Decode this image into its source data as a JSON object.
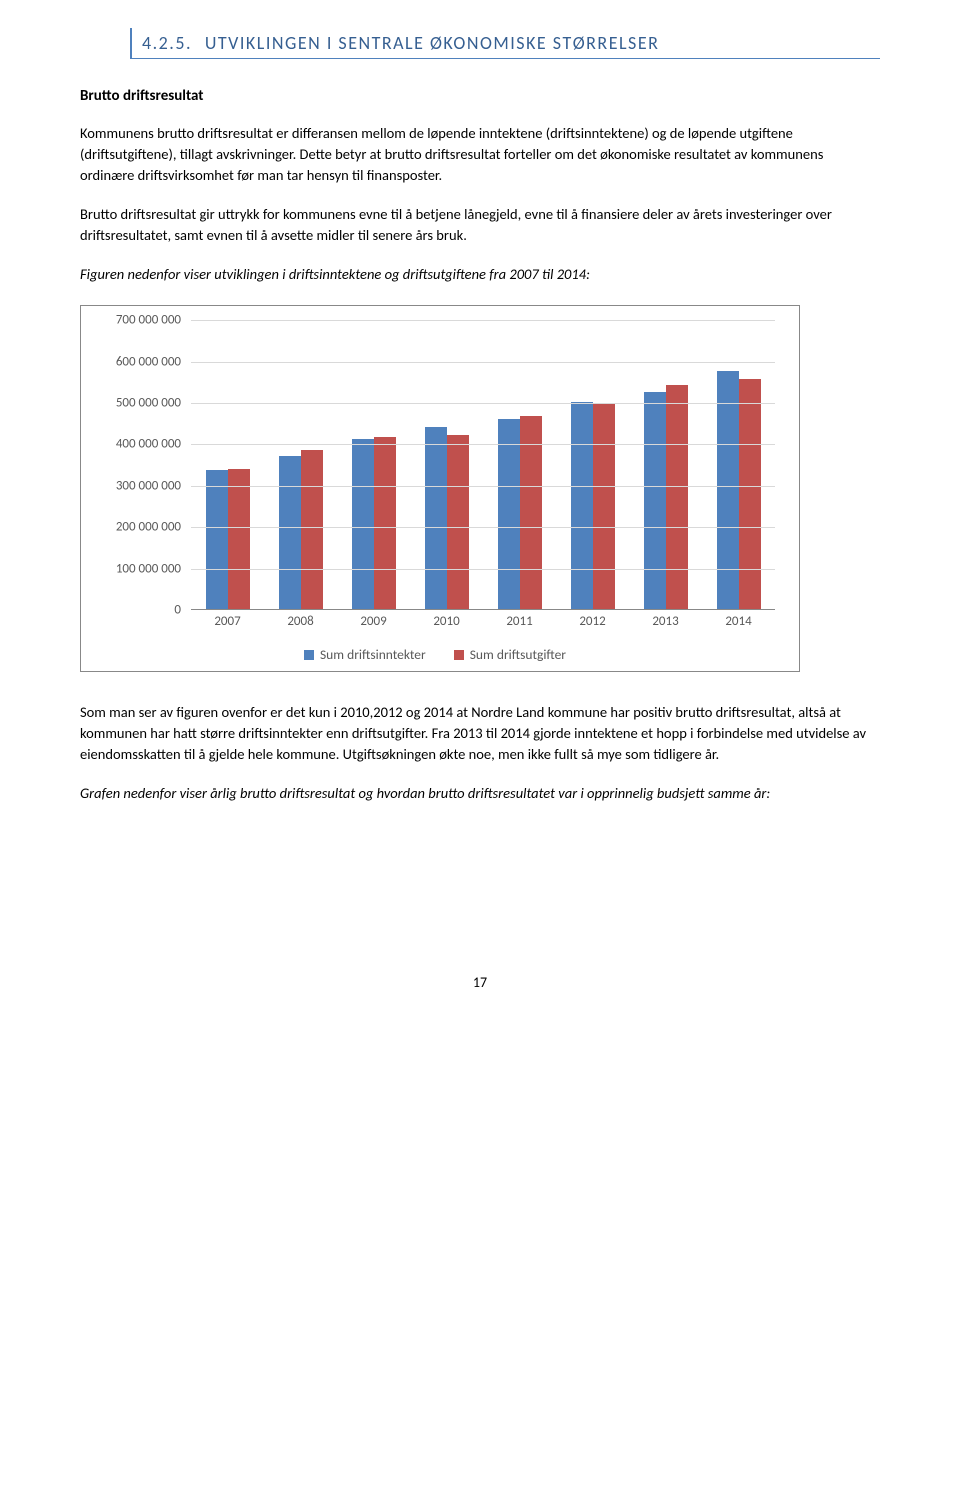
{
  "section": {
    "number": "4.2.5.",
    "title": "UTVIKLINGEN I SENTRALE ØKONOMISKE STØRRELSER"
  },
  "subheading": "Brutto driftsresultat",
  "para1": "Kommunens brutto driftsresultat er differansen mellom de løpende inntektene (driftsinntektene) og de løpende utgiftene (driftsutgiftene), tillagt avskrivninger. Dette betyr at brutto driftsresultat forteller om det økonomiske resultatet av kommunens ordinære driftsvirksomhet før man tar hensyn til finansposter.",
  "para2": "Brutto driftsresultat gir uttrykk for kommunens evne til å betjene lånegjeld, evne til å finansiere deler av årets investeringer over driftsresultatet, samt evnen til å avsette midler til senere års bruk.",
  "para3": "Figuren nedenfor viser utviklingen i driftsinntektene og driftsutgiftene fra 2007 til 2014:",
  "chart": {
    "type": "bar",
    "y_max": 700000000,
    "y_step": 100000000,
    "y_ticks": [
      "700 000 000",
      "600 000 000",
      "500 000 000",
      "400 000 000",
      "300 000 000",
      "200 000 000",
      "100 000 000",
      "0"
    ],
    "categories": [
      "2007",
      "2008",
      "2009",
      "2010",
      "2011",
      "2012",
      "2013",
      "2014"
    ],
    "series": [
      {
        "name": "Sum driftsinntekter",
        "color": "#4f81bd",
        "values": [
          335000000,
          370000000,
          410000000,
          440000000,
          460000000,
          500000000,
          525000000,
          575000000
        ]
      },
      {
        "name": "Sum driftsutgifter",
        "color": "#c0504d",
        "values": [
          338000000,
          385000000,
          415000000,
          420000000,
          465000000,
          495000000,
          540000000,
          555000000
        ]
      }
    ],
    "grid_color": "#d9d9d9",
    "axis_color": "#888888",
    "text_color": "#595959"
  },
  "para4": "Som man ser av figuren ovenfor er det kun i 2010,2012 og 2014 at Nordre Land kommune har positiv brutto driftsresultat, altså at kommunen har hatt større driftsinntekter enn driftsutgifter. Fra 2013 til 2014 gjorde inntektene et hopp i forbindelse med utvidelse av eiendomsskatten til å gjelde hele kommune. Utgiftsøkningen økte noe, men ikke fullt så mye som tidligere år.",
  "para5": "Grafen nedenfor viser årlig brutto driftsresultat og hvordan brutto driftsresultatet var i opprinnelig budsjett samme år:",
  "page_num": "17"
}
